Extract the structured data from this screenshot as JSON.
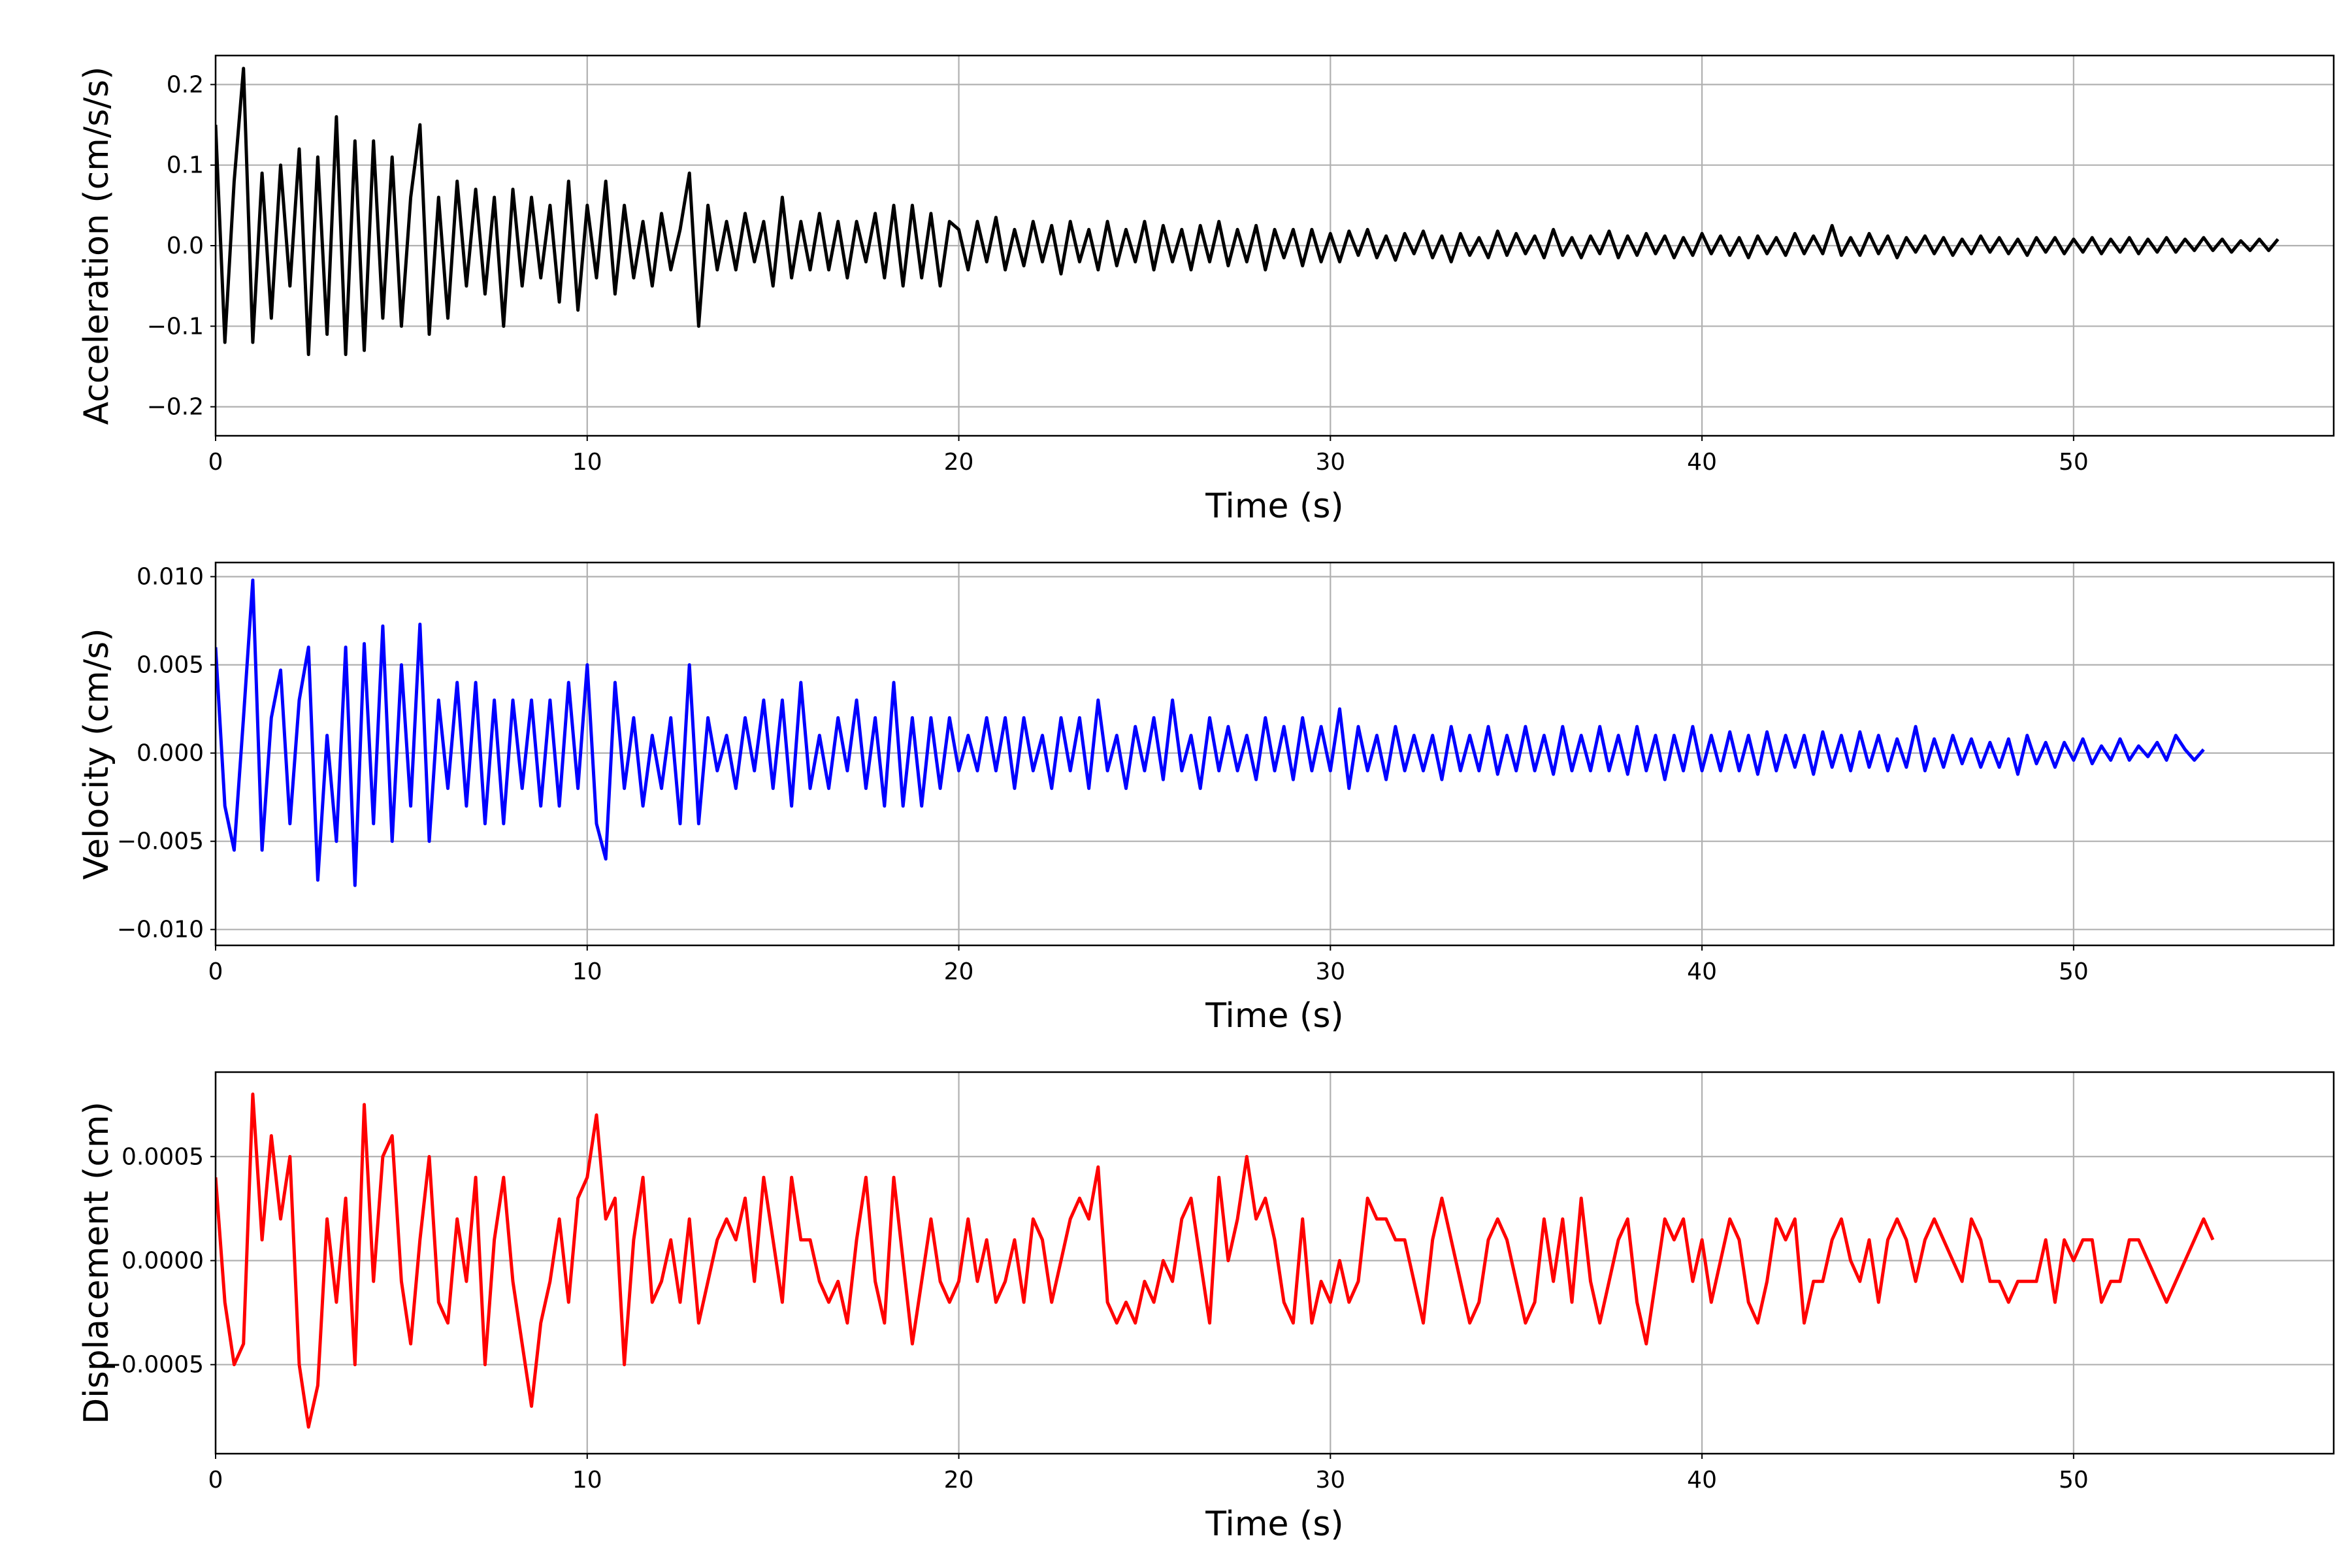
{
  "chart_data": [
    {
      "type": "line",
      "name": "acceleration",
      "xlabel": "Time (s)",
      "ylabel": "Acceleration (cm/s/s)",
      "xlim": [
        0,
        57
      ],
      "ylim": [
        -0.236,
        0.236
      ],
      "xticks": [
        0,
        10,
        20,
        30,
        40,
        50
      ],
      "xtick_labels": [
        "0",
        "10",
        "20",
        "30",
        "40",
        "50"
      ],
      "yticks": [
        -0.2,
        -0.1,
        0.0,
        0.1,
        0.2
      ],
      "ytick_labels": [
        "−0.2",
        "−0.1",
        "0.0",
        "0.1",
        "0.2"
      ],
      "grid": true,
      "color": "#000000",
      "x_start": 0,
      "dt": 0.25,
      "values": [
        0.15,
        -0.12,
        0.08,
        0.22,
        -0.12,
        0.09,
        -0.09,
        0.1,
        -0.05,
        0.12,
        -0.135,
        0.11,
        -0.11,
        0.16,
        -0.135,
        0.13,
        -0.13,
        0.13,
        -0.09,
        0.11,
        -0.1,
        0.06,
        0.15,
        -0.11,
        0.06,
        -0.09,
        0.08,
        -0.05,
        0.07,
        -0.06,
        0.06,
        -0.1,
        0.07,
        -0.05,
        0.06,
        -0.04,
        0.05,
        -0.07,
        0.08,
        -0.08,
        0.05,
        -0.04,
        0.08,
        -0.06,
        0.05,
        -0.04,
        0.03,
        -0.05,
        0.04,
        -0.03,
        0.02,
        0.09,
        -0.1,
        0.05,
        -0.03,
        0.03,
        -0.03,
        0.04,
        -0.02,
        0.03,
        -0.05,
        0.06,
        -0.04,
        0.03,
        -0.03,
        0.04,
        -0.03,
        0.03,
        -0.04,
        0.03,
        -0.02,
        0.04,
        -0.04,
        0.05,
        -0.05,
        0.05,
        -0.04,
        0.04,
        -0.05,
        0.03,
        0.02,
        -0.03,
        0.03,
        -0.02,
        0.035,
        -0.03,
        0.02,
        -0.025,
        0.03,
        -0.02,
        0.025,
        -0.035,
        0.03,
        -0.02,
        0.02,
        -0.03,
        0.03,
        -0.025,
        0.02,
        -0.02,
        0.03,
        -0.03,
        0.025,
        -0.02,
        0.02,
        -0.03,
        0.025,
        -0.02,
        0.03,
        -0.025,
        0.02,
        -0.02,
        0.025,
        -0.03,
        0.02,
        -0.015,
        0.02,
        -0.025,
        0.02,
        -0.02,
        0.015,
        -0.02,
        0.018,
        -0.012,
        0.02,
        -0.015,
        0.012,
        -0.018,
        0.015,
        -0.01,
        0.018,
        -0.015,
        0.012,
        -0.02,
        0.015,
        -0.012,
        0.01,
        -0.015,
        0.018,
        -0.012,
        0.015,
        -0.01,
        0.012,
        -0.015,
        0.02,
        -0.012,
        0.01,
        -0.015,
        0.012,
        -0.01,
        0.018,
        -0.015,
        0.012,
        -0.012,
        0.015,
        -0.01,
        0.012,
        -0.015,
        0.01,
        -0.012,
        0.015,
        -0.01,
        0.012,
        -0.012,
        0.01,
        -0.015,
        0.012,
        -0.01,
        0.01,
        -0.012,
        0.015,
        -0.01,
        0.012,
        -0.01,
        0.025,
        -0.012,
        0.01,
        -0.012,
        0.015,
        -0.01,
        0.012,
        -0.015,
        0.01,
        -0.008,
        0.012,
        -0.01,
        0.01,
        -0.012,
        0.008,
        -0.01,
        0.012,
        -0.008,
        0.01,
        -0.01,
        0.008,
        -0.012,
        0.01,
        -0.008,
        0.01,
        -0.01,
        0.008,
        -0.008,
        0.01,
        -0.01,
        0.008,
        -0.008,
        0.01,
        -0.01,
        0.008,
        -0.008,
        0.01,
        -0.008,
        0.008,
        -0.006,
        0.01,
        -0.006,
        0.008,
        -0.008,
        0.006,
        -0.006,
        0.008,
        -0.006,
        0.008
      ]
    },
    {
      "type": "line",
      "name": "velocity",
      "xlabel": "Time (s)",
      "ylabel": "Velocity (cm/s)",
      "xlim": [
        0,
        57
      ],
      "ylim": [
        -0.0109,
        0.0108
      ],
      "xticks": [
        0,
        10,
        20,
        30,
        40,
        50
      ],
      "xtick_labels": [
        "0",
        "10",
        "20",
        "30",
        "40",
        "50"
      ],
      "yticks": [
        -0.01,
        -0.005,
        0.0,
        0.005,
        0.01
      ],
      "ytick_labels": [
        "−0.010",
        "−0.005",
        "0.000",
        "0.005",
        "0.010"
      ],
      "grid": true,
      "color": "#0000ff",
      "x_start": 0,
      "dt": 0.25,
      "values": [
        0.006,
        -0.003,
        -0.0055,
        0.002,
        0.0098,
        -0.0055,
        0.002,
        0.0047,
        -0.004,
        0.003,
        0.006,
        -0.0072,
        0.001,
        -0.005,
        0.006,
        -0.0075,
        0.0062,
        -0.004,
        0.0072,
        -0.005,
        0.005,
        -0.003,
        0.0073,
        -0.005,
        0.003,
        -0.002,
        0.004,
        -0.003,
        0.004,
        -0.004,
        0.003,
        -0.004,
        0.003,
        -0.002,
        0.003,
        -0.003,
        0.003,
        -0.003,
        0.004,
        -0.002,
        0.005,
        -0.004,
        -0.006,
        0.004,
        -0.002,
        0.002,
        -0.003,
        0.001,
        -0.002,
        0.002,
        -0.004,
        0.005,
        -0.004,
        0.002,
        -0.001,
        0.001,
        -0.002,
        0.002,
        -0.001,
        0.003,
        -0.002,
        0.003,
        -0.003,
        0.004,
        -0.002,
        0.001,
        -0.002,
        0.002,
        -0.001,
        0.003,
        -0.002,
        0.002,
        -0.003,
        0.004,
        -0.003,
        0.002,
        -0.003,
        0.002,
        -0.002,
        0.002,
        -0.001,
        0.001,
        -0.001,
        0.002,
        -0.001,
        0.002,
        -0.002,
        0.002,
        -0.001,
        0.001,
        -0.002,
        0.002,
        -0.001,
        0.002,
        -0.002,
        0.003,
        -0.001,
        0.001,
        -0.002,
        0.0015,
        -0.001,
        0.002,
        -0.0015,
        0.003,
        -0.001,
        0.001,
        -0.002,
        0.002,
        -0.001,
        0.0015,
        -0.001,
        0.001,
        -0.0015,
        0.002,
        -0.001,
        0.0015,
        -0.0015,
        0.002,
        -0.001,
        0.0015,
        -0.001,
        0.0025,
        -0.002,
        0.0015,
        -0.001,
        0.001,
        -0.0015,
        0.0015,
        -0.001,
        0.001,
        -0.001,
        0.001,
        -0.0015,
        0.0015,
        -0.001,
        0.001,
        -0.001,
        0.0015,
        -0.0012,
        0.001,
        -0.001,
        0.0015,
        -0.001,
        0.001,
        -0.0012,
        0.0015,
        -0.001,
        0.001,
        -0.001,
        0.0015,
        -0.001,
        0.001,
        -0.0012,
        0.0015,
        -0.001,
        0.001,
        -0.0015,
        0.001,
        -0.001,
        0.0015,
        -0.001,
        0.001,
        -0.001,
        0.0012,
        -0.001,
        0.001,
        -0.0012,
        0.0012,
        -0.001,
        0.001,
        -0.0008,
        0.001,
        -0.0012,
        0.0012,
        -0.0008,
        0.001,
        -0.001,
        0.0012,
        -0.0008,
        0.001,
        -0.001,
        0.0008,
        -0.0008,
        0.0015,
        -0.001,
        0.0008,
        -0.0008,
        0.001,
        -0.0006,
        0.0008,
        -0.0008,
        0.0006,
        -0.0008,
        0.0008,
        -0.0012,
        0.001,
        -0.0006,
        0.0006,
        -0.0008,
        0.0006,
        -0.0004,
        0.0008,
        -0.0006,
        0.0004,
        -0.0004,
        0.0008,
        -0.0004,
        0.0004,
        -0.0002,
        0.0006,
        -0.0004,
        0.001,
        0.0002,
        -0.0004,
        0.0002
      ]
    },
    {
      "type": "line",
      "name": "displacement",
      "xlabel": "Time (s)",
      "ylabel": "Displacement (cm)",
      "xlim": [
        0,
        57
      ],
      "ylim": [
        -0.000928,
        0.000906
      ],
      "xticks": [
        0,
        10,
        20,
        30,
        40,
        50
      ],
      "xtick_labels": [
        "0",
        "10",
        "20",
        "30",
        "40",
        "50"
      ],
      "yticks": [
        -0.0005,
        0.0,
        0.0005
      ],
      "ytick_labels": [
        "−0.0005",
        "0.0000",
        "0.0005"
      ],
      "grid": true,
      "color": "#ff0000",
      "x_start": 0,
      "dt": 0.25,
      "values": [
        0.0004,
        -0.0002,
        -0.0005,
        -0.0004,
        0.0008,
        0.0001,
        0.0006,
        0.0002,
        0.0005,
        -0.0005,
        -0.0008,
        -0.0006,
        0.0002,
        -0.0002,
        0.0003,
        -0.0005,
        0.00075,
        -0.0001,
        0.0005,
        0.0006,
        -0.0001,
        -0.0004,
        0.0001,
        0.0005,
        -0.0002,
        -0.0003,
        0.0002,
        -0.0001,
        0.0004,
        -0.0005,
        0.0001,
        0.0004,
        -0.0001,
        -0.0004,
        -0.0007,
        -0.0003,
        -0.0001,
        0.0002,
        -0.0002,
        0.0003,
        0.0004,
        0.0007,
        0.0002,
        0.0003,
        -0.0005,
        0.0001,
        0.0004,
        -0.0002,
        -0.0001,
        0.0001,
        -0.0002,
        0.0002,
        -0.0003,
        -0.0001,
        0.0001,
        0.0002,
        0.0001,
        0.0003,
        -0.0001,
        0.0004,
        0.0001,
        -0.0002,
        0.0004,
        0.0001,
        0.0001,
        -0.0001,
        -0.0002,
        -0.0001,
        -0.0003,
        0.0001,
        0.0004,
        -0.0001,
        -0.0003,
        0.0004,
        0.0,
        -0.0004,
        -0.0001,
        0.0002,
        -0.0001,
        -0.0002,
        -0.0001,
        0.0002,
        -0.0001,
        0.0001,
        -0.0002,
        -0.0001,
        0.0001,
        -0.0002,
        0.0002,
        0.0001,
        -0.0002,
        0.0,
        0.0002,
        0.0003,
        0.0002,
        0.00045,
        -0.0002,
        -0.0003,
        -0.0002,
        -0.0003,
        -0.0001,
        -0.0002,
        0.0,
        -0.0001,
        0.0002,
        0.0003,
        0.0,
        -0.0003,
        0.0004,
        0.0,
        0.0002,
        0.0005,
        0.0002,
        0.0003,
        0.0001,
        -0.0002,
        -0.0003,
        0.0002,
        -0.0003,
        -0.0001,
        -0.0002,
        0.0,
        -0.0002,
        -0.0001,
        0.0003,
        0.0002,
        0.0002,
        0.0001,
        0.0001,
        -0.0001,
        -0.0003,
        0.0001,
        0.0003,
        0.0001,
        -0.0001,
        -0.0003,
        -0.0002,
        0.0001,
        0.0002,
        0.0001,
        -0.0001,
        -0.0003,
        -0.0002,
        0.0002,
        -0.0001,
        0.0002,
        -0.0002,
        0.0003,
        -0.0001,
        -0.0003,
        -0.0001,
        0.0001,
        0.0002,
        -0.0002,
        -0.0004,
        -0.0001,
        0.0002,
        0.0001,
        0.0002,
        -0.0001,
        0.0001,
        -0.0002,
        0.0,
        0.0002,
        0.0001,
        -0.0002,
        -0.0003,
        -0.0001,
        0.0002,
        0.0001,
        0.0002,
        -0.0003,
        -0.0001,
        -0.0001,
        0.0001,
        0.0002,
        0.0,
        -0.0001,
        0.0001,
        -0.0002,
        0.0001,
        0.0002,
        0.0001,
        -0.0001,
        0.0001,
        0.0002,
        0.0001,
        0.0,
        -0.0001,
        0.0002,
        0.0001,
        -0.0001,
        -0.0001,
        -0.0002,
        -0.0001,
        -0.0001,
        -0.0001,
        0.0001,
        -0.0002,
        0.0001,
        0.0,
        0.0001,
        0.0001,
        -0.0002,
        -0.0001,
        -0.0001,
        0.0001,
        0.0001,
        0.0,
        -0.0001,
        -0.0002,
        -0.0001,
        0.0,
        0.0001,
        0.0002,
        0.0001
      ]
    }
  ]
}
